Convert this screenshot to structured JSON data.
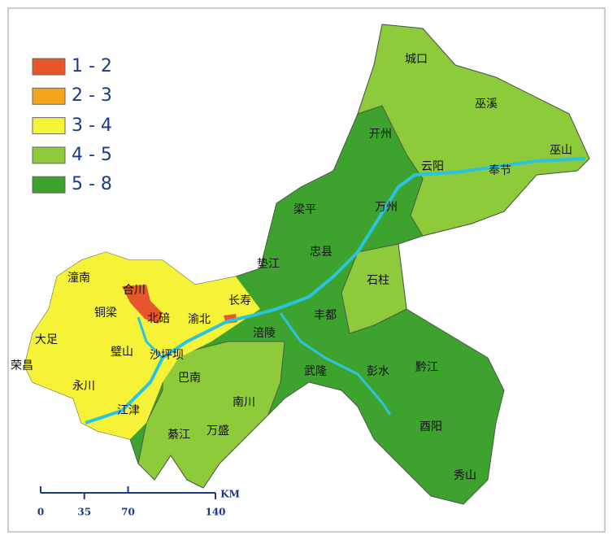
{
  "legend": {
    "items": [
      {
        "label": "1 - 2",
        "color": "#e5572b"
      },
      {
        "label": "2 - 3",
        "color": "#f5a51c"
      },
      {
        "label": "3 - 4",
        "color": "#f5f238"
      },
      {
        "label": "4 - 5",
        "color": "#8ecb3a"
      },
      {
        "label": "5 - 8",
        "color": "#3ea22e"
      }
    ]
  },
  "places": [
    "城口",
    "巫溪",
    "巫山",
    "开州",
    "云阳",
    "奉节",
    "梁平",
    "万州",
    "忠县",
    "垫江",
    "石柱",
    "潼南",
    "合川",
    "长寿",
    "铜梁",
    "北碚",
    "渝北",
    "大足",
    "璧山",
    "沙坪坝",
    "荣昌",
    "永川",
    "丰都",
    "涪陵",
    "武隆",
    "彭水",
    "黔江",
    "巴南",
    "南川",
    "江津",
    "綦江",
    "万盛",
    "酉阳",
    "秀山"
  ],
  "scale": {
    "ticks": [
      0,
      35,
      70,
      140
    ],
    "unit": "KM"
  }
}
